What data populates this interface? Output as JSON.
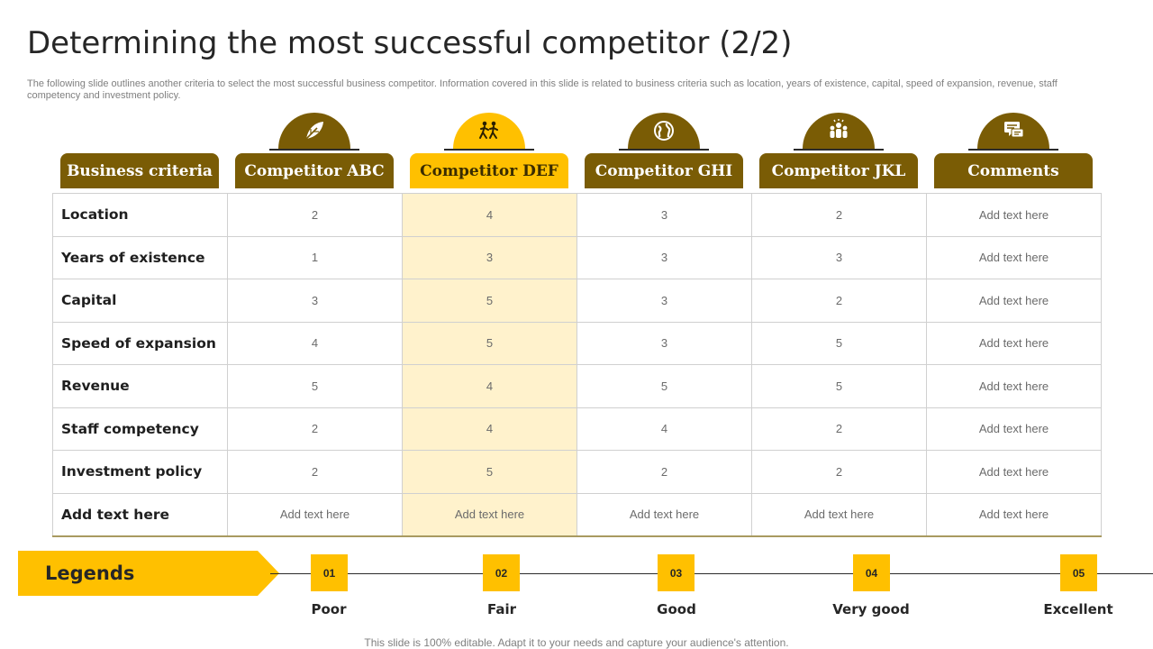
{
  "title": "Determining the most successful competitor (2/2)",
  "subtitle": "The following slide outlines another criteria to select the most successful business competitor. Information covered in this slide is related to business criteria such as location, years of existence, capital, speed of expansion, revenue, staff competency and investment policy.",
  "colors": {
    "dark_gold": "#7a5c05",
    "gold": "#ffc000",
    "highlight_cell": "#fff2cc"
  },
  "headers": [
    "Business criteria",
    "Competitor ABC",
    "Competitor DEF",
    "Competitor GHI",
    "Competitor JKL",
    "Comments"
  ],
  "header_icons": [
    "leaf-icon",
    "people-running-icon",
    "globe-icon",
    "team-icon",
    "chat-icon"
  ],
  "rows": [
    {
      "criteria": "Location",
      "abc": "2",
      "def": "4",
      "ghi": "3",
      "jkl": "2",
      "comments": "Add text here"
    },
    {
      "criteria": "Years of existence",
      "abc": "1",
      "def": "3",
      "ghi": "3",
      "jkl": "3",
      "comments": "Add text here"
    },
    {
      "criteria": "Capital",
      "abc": "3",
      "def": "5",
      "ghi": "3",
      "jkl": "2",
      "comments": "Add text here"
    },
    {
      "criteria": "Speed of expansion",
      "abc": "4",
      "def": "5",
      "ghi": "3",
      "jkl": "5",
      "comments": "Add text here"
    },
    {
      "criteria": "Revenue",
      "abc": "5",
      "def": "4",
      "ghi": "5",
      "jkl": "5",
      "comments": "Add text here"
    },
    {
      "criteria": "Staff competency",
      "abc": "2",
      "def": "4",
      "ghi": "4",
      "jkl": "2",
      "comments": "Add text here"
    },
    {
      "criteria": "Investment policy",
      "abc": "2",
      "def": "5",
      "ghi": "2",
      "jkl": "2",
      "comments": "Add text here"
    },
    {
      "criteria": "Add text here",
      "abc": "Add text here",
      "def": "Add text here",
      "ghi": "Add text here",
      "jkl": "Add text here",
      "comments": "Add text here"
    }
  ],
  "legend": {
    "title": "Legends",
    "items": [
      {
        "num": "01",
        "label": "Poor"
      },
      {
        "num": "02",
        "label": "Fair"
      },
      {
        "num": "03",
        "label": "Good"
      },
      {
        "num": "04",
        "label": "Very good"
      },
      {
        "num": "05",
        "label": "Excellent"
      }
    ]
  },
  "footer": "This slide is 100% editable. Adapt it to your needs and capture your audience's attention."
}
